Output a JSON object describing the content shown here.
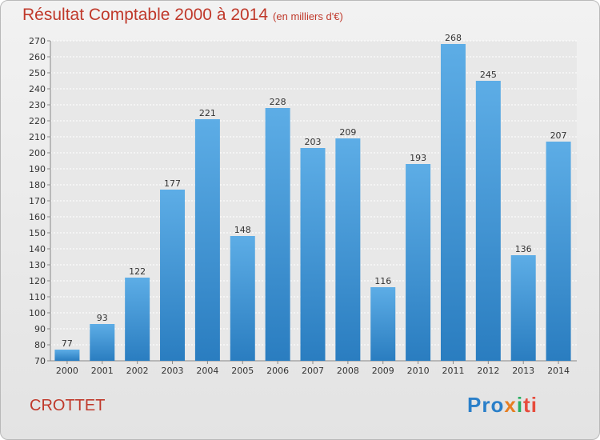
{
  "header": {
    "title": "Résultat Comptable 2000 à 2014",
    "unit": "(en milliers d'€)"
  },
  "footer": {
    "commune": "CROTTET",
    "logo_parts": [
      "Pro",
      "x",
      "i",
      "ti"
    ]
  },
  "colors": {
    "title": "#c0392b",
    "bar": "#3d94d9",
    "grid": "#ffffff"
  },
  "chart_data": {
    "type": "bar",
    "title": "Résultat Comptable 2000 à 2014",
    "subtitle": "(en milliers d'€)",
    "categories": [
      "2000",
      "2001",
      "2002",
      "2003",
      "2004",
      "2005",
      "2006",
      "2007",
      "2008",
      "2009",
      "2010",
      "2011",
      "2012",
      "2013",
      "2014"
    ],
    "values": [
      77,
      93,
      122,
      177,
      221,
      148,
      228,
      203,
      209,
      116,
      193,
      268,
      245,
      136,
      207
    ],
    "ylim": [
      70,
      270
    ],
    "ytick_step": 10,
    "grid": true,
    "legend": "none"
  }
}
